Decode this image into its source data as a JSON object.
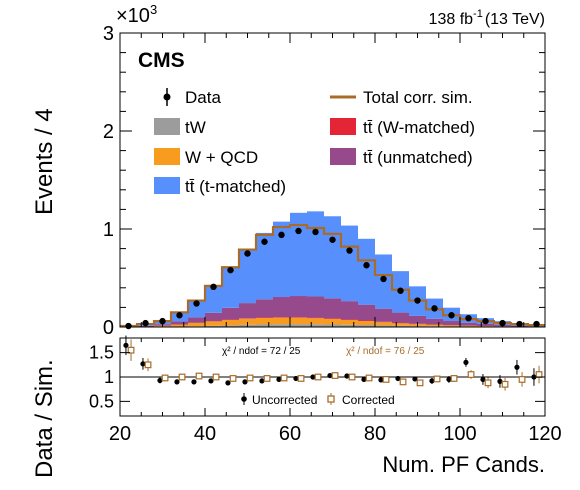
{
  "chart_data": [
    {
      "type": "bar",
      "title": "",
      "experiment_label": "CMS",
      "lumi_label": "138 fb",
      "lumi_superscript": "-1",
      "energy_label": "(13 TeV)",
      "ylabel": "Events / 4",
      "xlabel": "",
      "y_multiplier_label": "×10",
      "y_multiplier_exponent": "3",
      "x_edges": [
        20,
        24,
        28,
        32,
        36,
        40,
        44,
        48,
        52,
        56,
        60,
        64,
        68,
        72,
        76,
        80,
        84,
        88,
        92,
        96,
        100,
        104,
        108,
        112,
        116,
        120
      ],
      "xlim": [
        20,
        120
      ],
      "ylim": [
        0,
        3
      ],
      "yticks": [
        "0",
        "1",
        "2",
        "3"
      ],
      "series": [
        {
          "name": "tW",
          "color": "#9c9c9c",
          "values": [
            0.0,
            0.001,
            0.002,
            0.004,
            0.008,
            0.012,
            0.017,
            0.022,
            0.026,
            0.028,
            0.029,
            0.028,
            0.026,
            0.023,
            0.02,
            0.016,
            0.012,
            0.009,
            0.007,
            0.005,
            0.004,
            0.003,
            0.002,
            0.001,
            0.001
          ]
        },
        {
          "name": "W + QCD",
          "color": "#f89c20",
          "values": [
            0.0,
            0.004,
            0.01,
            0.02,
            0.033,
            0.045,
            0.055,
            0.062,
            0.066,
            0.067,
            0.066,
            0.062,
            0.056,
            0.049,
            0.041,
            0.033,
            0.026,
            0.02,
            0.015,
            0.011,
            0.008,
            0.006,
            0.004,
            0.003,
            0.002
          ]
        },
        {
          "name": "tt̄ (W-matched)",
          "color": "#e42536",
          "values": [
            0.0,
            0.0,
            0.001,
            0.001,
            0.002,
            0.003,
            0.004,
            0.005,
            0.006,
            0.006,
            0.006,
            0.006,
            0.006,
            0.005,
            0.005,
            0.004,
            0.003,
            0.003,
            0.002,
            0.002,
            0.001,
            0.001,
            0.001,
            0.0,
            0.0
          ]
        },
        {
          "name": "tt̄ (unmatched)",
          "color": "#964a8b",
          "values": [
            0.0,
            0.006,
            0.016,
            0.032,
            0.055,
            0.085,
            0.12,
            0.155,
            0.185,
            0.205,
            0.215,
            0.215,
            0.205,
            0.187,
            0.162,
            0.134,
            0.106,
            0.081,
            0.06,
            0.043,
            0.031,
            0.022,
            0.015,
            0.01,
            0.006
          ]
        },
        {
          "name": "tt̄ (t-matched)",
          "color": "#5790fc",
          "values": [
            0.0,
            0.009,
            0.041,
            0.093,
            0.172,
            0.275,
            0.414,
            0.546,
            0.677,
            0.769,
            0.849,
            0.869,
            0.837,
            0.771,
            0.672,
            0.553,
            0.423,
            0.302,
            0.206,
            0.136,
            0.086,
            0.058,
            0.038,
            0.026,
            0.021
          ]
        }
      ],
      "total_corr_sim": {
        "name": "Total corr. sim.",
        "color": "#a96b29",
        "values": [
          0.01,
          0.03,
          0.06,
          0.15,
          0.27,
          0.42,
          0.61,
          0.79,
          0.94,
          1.02,
          1.04,
          1.01,
          0.95,
          0.82,
          0.68,
          0.53,
          0.38,
          0.27,
          0.18,
          0.12,
          0.08,
          0.06,
          0.04,
          0.03,
          0.02
        ]
      },
      "data": {
        "name": "Data",
        "color": "#000000",
        "x": [
          22,
          26,
          30,
          34,
          38,
          42,
          46,
          50,
          54,
          58,
          62,
          66,
          70,
          74,
          78,
          82,
          86,
          90,
          94,
          98,
          102,
          106,
          110,
          114,
          118
        ],
        "values": [
          0.01,
          0.04,
          0.06,
          0.12,
          0.24,
          0.41,
          0.58,
          0.75,
          0.87,
          0.94,
          0.98,
          0.97,
          0.89,
          0.78,
          0.63,
          0.49,
          0.37,
          0.27,
          0.19,
          0.12,
          0.09,
          0.06,
          0.04,
          0.03,
          0.03
        ]
      },
      "legend": [
        {
          "label": "Data",
          "kind": "marker"
        },
        {
          "label": "Total corr. sim.",
          "kind": "line"
        },
        {
          "label": "tW",
          "kind": "box"
        },
        {
          "label": "tt̄ (W-matched)",
          "kind": "box"
        },
        {
          "label": "W + QCD",
          "kind": "box"
        },
        {
          "label": "tt̄ (unmatched)",
          "kind": "box"
        },
        {
          "label": "tt̄ (t-matched)",
          "kind": "box"
        }
      ],
      "legend_position": "top"
    },
    {
      "type": "scatter",
      "ylabel": "Data / Sim.",
      "xlabel": "Num. PF Cands.",
      "xlim": [
        20,
        120
      ],
      "ylim": [
        0.2,
        1.8
      ],
      "xticks": [
        "20",
        "40",
        "60",
        "80",
        "100",
        "120"
      ],
      "yticks": [
        "0.5",
        "1",
        "1.5"
      ],
      "reference_line": 1,
      "chi2_uncorrected": "χ² / ndof = 72 / 25",
      "chi2_corrected": "χ² / ndof = 76 / 25",
      "series": [
        {
          "name": "Uncorrected",
          "marker": "filled-circle",
          "color": "#000000",
          "x": [
            22,
            26,
            30,
            34,
            38,
            42,
            46,
            50,
            54,
            58,
            62,
            66,
            70,
            74,
            78,
            82,
            86,
            90,
            94,
            98,
            102,
            106,
            110,
            114,
            118
          ],
          "values": [
            1.65,
            1.27,
            0.93,
            0.9,
            0.9,
            0.92,
            0.88,
            0.9,
            0.92,
            0.95,
            0.97,
            1.0,
            1.03,
            1.02,
            0.95,
            0.94,
            0.97,
            0.96,
            0.92,
            0.95,
            1.3,
            0.95,
            0.91,
            1.2,
            1.0
          ],
          "err": [
            0.2,
            0.12,
            0.06,
            0.05,
            0.04,
            0.03,
            0.02,
            0.02,
            0.02,
            0.02,
            0.02,
            0.02,
            0.02,
            0.02,
            0.03,
            0.03,
            0.04,
            0.05,
            0.06,
            0.07,
            0.09,
            0.11,
            0.13,
            0.15,
            0.18
          ]
        },
        {
          "name": "Corrected",
          "marker": "open-square",
          "color": "#a96b29",
          "x": [
            22,
            26,
            30,
            34,
            38,
            42,
            46,
            50,
            54,
            58,
            62,
            66,
            70,
            74,
            78,
            82,
            86,
            90,
            94,
            98,
            102,
            106,
            110,
            114,
            118
          ],
          "values": [
            1.55,
            1.25,
            0.98,
            1.0,
            1.02,
            1.0,
            0.97,
            0.98,
            0.97,
            0.98,
            0.97,
            1.0,
            1.03,
            1.0,
            0.98,
            0.95,
            0.9,
            0.88,
            0.96,
            0.97,
            1.05,
            0.88,
            0.85,
            0.95,
            1.05
          ],
          "err": [
            0.22,
            0.13,
            0.07,
            0.05,
            0.04,
            0.03,
            0.02,
            0.02,
            0.02,
            0.02,
            0.02,
            0.02,
            0.02,
            0.02,
            0.03,
            0.03,
            0.04,
            0.05,
            0.06,
            0.07,
            0.09,
            0.11,
            0.13,
            0.15,
            0.18
          ]
        }
      ],
      "legend": [
        {
          "label": "Uncorrected",
          "marker": "filled-circle"
        },
        {
          "label": "Corrected",
          "marker": "open-square"
        }
      ],
      "legend_position": "bottom"
    }
  ]
}
